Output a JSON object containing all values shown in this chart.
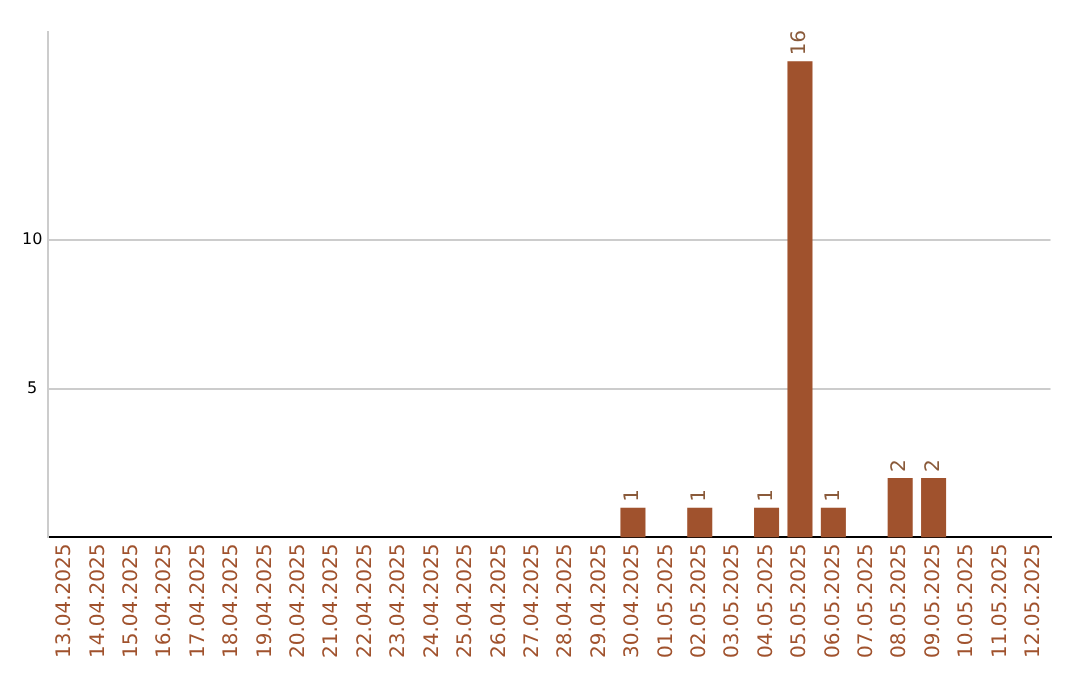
{
  "chart_data": {
    "type": "bar",
    "categories": [
      "13.04.2025",
      "14.04.2025",
      "15.04.2025",
      "16.04.2025",
      "17.04.2025",
      "18.04.2025",
      "19.04.2025",
      "20.04.2025",
      "21.04.2025",
      "22.04.2025",
      "23.04.2025",
      "24.04.2025",
      "25.04.2025",
      "26.04.2025",
      "27.04.2025",
      "28.04.2025",
      "29.04.2025",
      "30.04.2025",
      "01.05.2025",
      "02.05.2025",
      "03.05.2025",
      "04.05.2025",
      "05.05.2025",
      "06.05.2025",
      "07.05.2025",
      "08.05.2025",
      "09.05.2025",
      "10.05.2025",
      "11.05.2025",
      "12.05.2025"
    ],
    "values": [
      0,
      0,
      0,
      0,
      0,
      0,
      0,
      0,
      0,
      0,
      0,
      0,
      0,
      0,
      0,
      0,
      0,
      1,
      0,
      1,
      0,
      1,
      16,
      1,
      0,
      2,
      2,
      0,
      0,
      0
    ],
    "value_labels": [
      null,
      null,
      null,
      null,
      null,
      null,
      null,
      null,
      null,
      null,
      null,
      null,
      null,
      null,
      null,
      null,
      null,
      "1",
      null,
      "1",
      null,
      "1",
      "16",
      "1",
      null,
      "2",
      "2",
      null,
      null,
      null
    ],
    "color": "#a0522d",
    "ylim": [
      0,
      17
    ],
    "yticks": [
      5,
      10
    ],
    "grid": "y",
    "legend": false
  }
}
